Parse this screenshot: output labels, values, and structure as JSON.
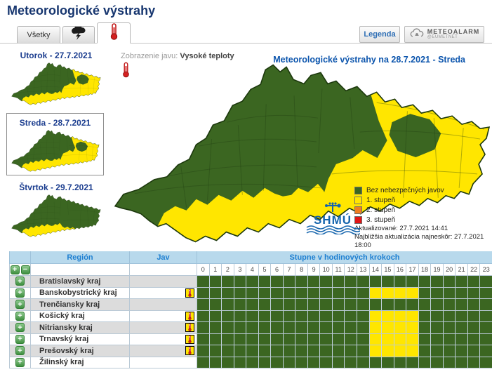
{
  "page": {
    "title": "Meteorologické výstrahy"
  },
  "toolbar": {
    "tab_all_label": "Všetky",
    "legend_button_label": "Legenda",
    "meteoalarm_label": "METEOALARM",
    "meteoalarm_sublabel": "@EUMETNET"
  },
  "sidebar": {
    "days": [
      {
        "label": "Utorok - 27.7.2021",
        "selected": false,
        "map_variant": "south-and-east-warning"
      },
      {
        "label": "Streda - 28.7.2021",
        "selected": true,
        "map_variant": "south-and-east-warning"
      },
      {
        "label": "Štvrtok - 29.7.2021",
        "selected": false,
        "map_variant": "south-band-warning"
      }
    ]
  },
  "map": {
    "display_type_label": "Zobrazenie javu:",
    "display_type_value": "Vysoké teploty",
    "title": "Meteorologické výstrahy na 28.7.2021 - Streda",
    "legend": [
      {
        "label": "Bez nebezpečných javov",
        "color": "#3b6621"
      },
      {
        "label": "1. stupeň",
        "color": "#ffe600"
      },
      {
        "label": "2. stupeň",
        "color": "#ee7d21"
      },
      {
        "label": "3. stupeň",
        "color": "#e01515"
      }
    ],
    "updated": "Aktualizované: 27.7.2021 14:41",
    "next_update": "Najbližšia aktualizácia najneskôr: 27.7.2021 18:00",
    "logo_text": "SHMÚ"
  },
  "table": {
    "headers": {
      "region": "Región",
      "phenomenon": "Jav",
      "steps": "Stupne v hodinových krokoch"
    },
    "hours": [
      "0",
      "1",
      "2",
      "3",
      "4",
      "5",
      "6",
      "7",
      "8",
      "9",
      "10",
      "11",
      "12",
      "13",
      "14",
      "15",
      "16",
      "17",
      "18",
      "19",
      "20",
      "21",
      "22",
      "23"
    ],
    "rows": [
      {
        "region": "Bratislavský kraj",
        "has_warning": false,
        "warning_hours": []
      },
      {
        "region": "Banskobystrický kraj",
        "has_warning": true,
        "warning_hours": [
          14,
          15,
          16,
          17
        ]
      },
      {
        "region": "Trenčiansky kraj",
        "has_warning": false,
        "warning_hours": []
      },
      {
        "region": "Košický kraj",
        "has_warning": true,
        "warning_hours": [
          14,
          15,
          16,
          17
        ]
      },
      {
        "region": "Nitriansky kraj",
        "has_warning": true,
        "warning_hours": [
          14,
          15,
          16,
          17
        ]
      },
      {
        "region": "Trnavský kraj",
        "has_warning": true,
        "warning_hours": [
          14,
          15,
          16,
          17
        ]
      },
      {
        "region": "Prešovský kraj",
        "has_warning": true,
        "warning_hours": [
          14,
          15,
          16,
          17
        ]
      },
      {
        "region": "Žilinský kraj",
        "has_warning": false,
        "warning_hours": []
      }
    ]
  }
}
